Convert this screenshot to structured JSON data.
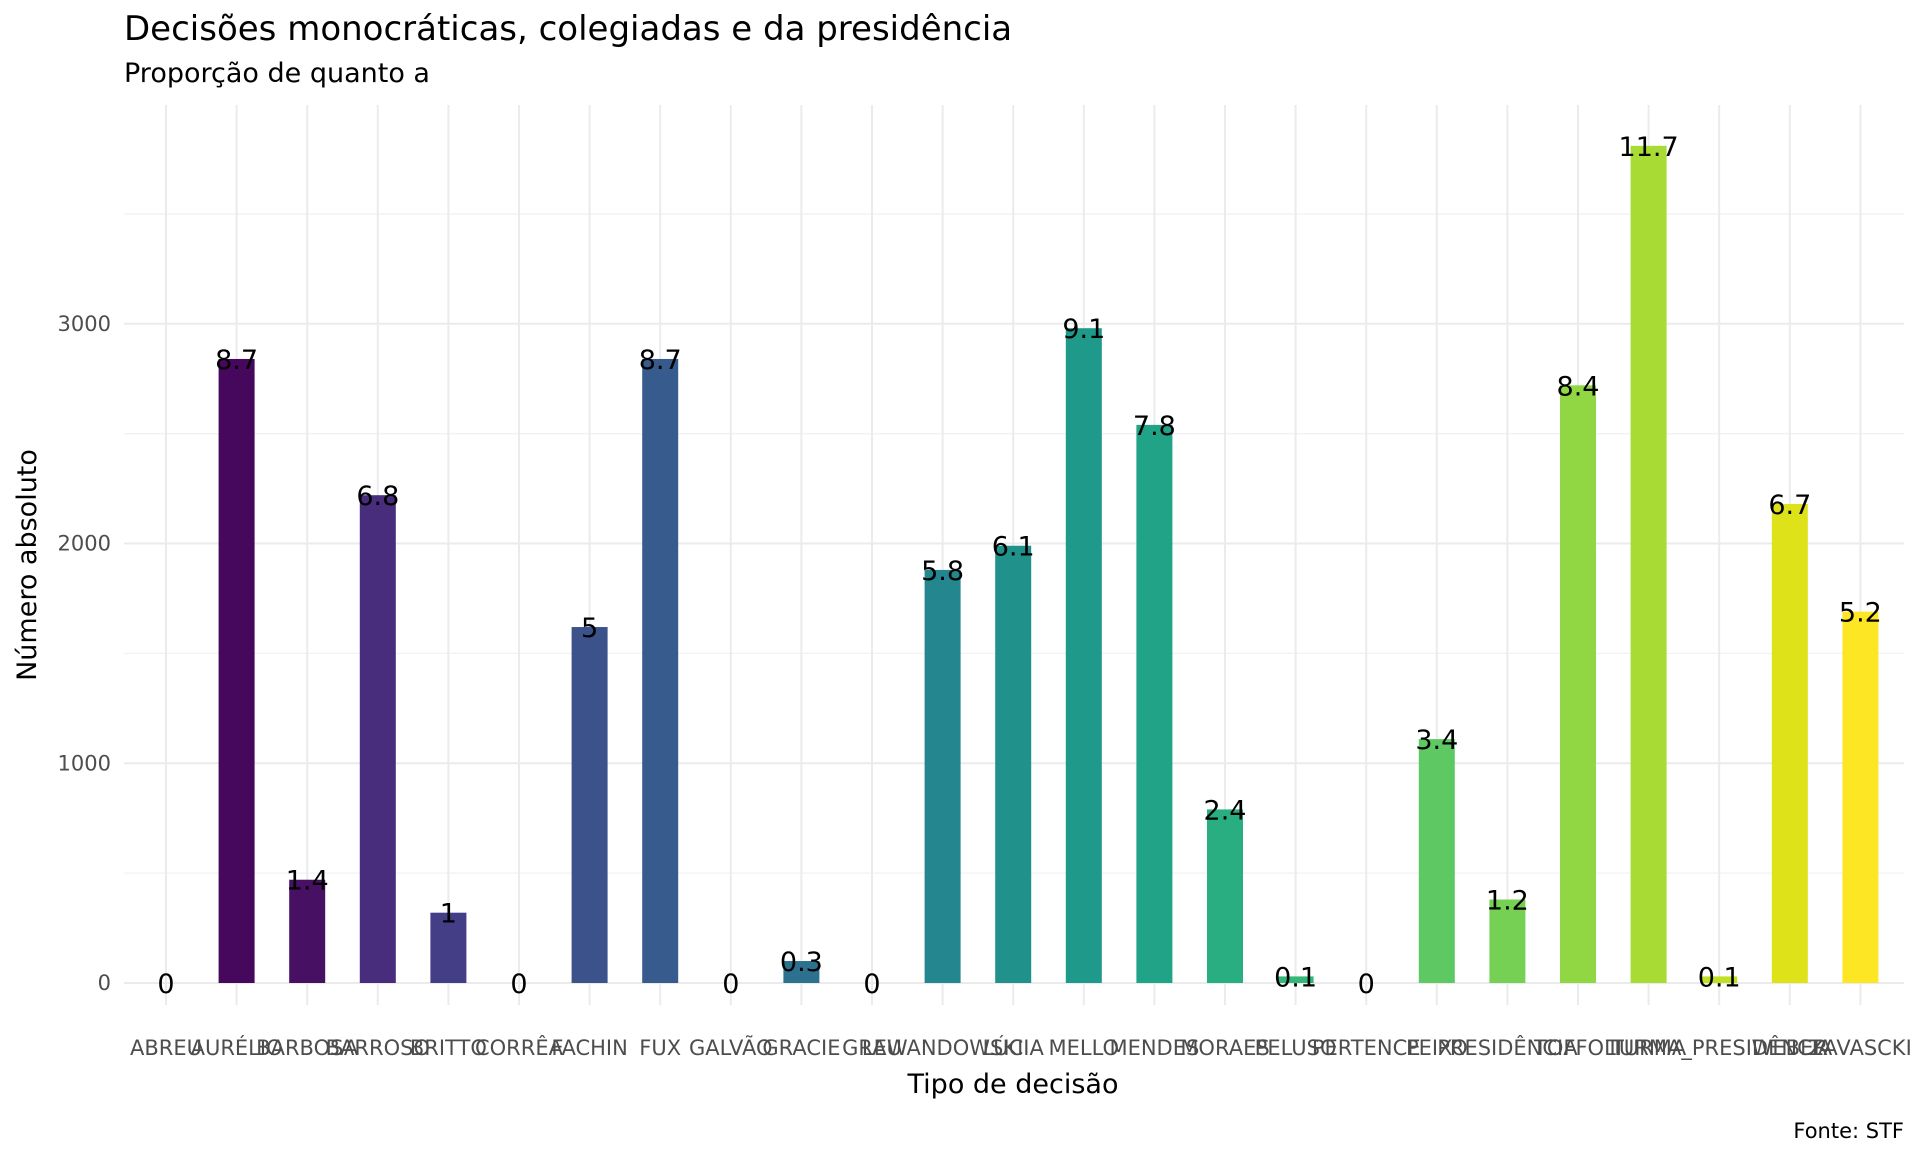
{
  "chart_data": {
    "type": "bar",
    "title": "Decisões monocráticas, colegiadas e da presidência",
    "subtitle": "Proporção de quanto a",
    "xlabel": "Tipo de decisão",
    "ylabel": "Número absoluto",
    "caption": "Fonte: STF",
    "ylim": [
      0,
      3850
    ],
    "yticks": [
      0,
      1000,
      2000,
      3000
    ],
    "grid": true,
    "legend": "none",
    "categories": [
      "ABREU",
      "AURÉLIO",
      "BARBOSA",
      "BARROSO",
      "BRITTO",
      "CORRÊA",
      "FACHIN",
      "FUX",
      "GALVÃO",
      "GRACIE",
      "GRAU",
      "LEWANDOWSKI",
      "LÚCIA",
      "MELLO",
      "MENDES",
      "MORAES",
      "PELUSO",
      "PERTENCE",
      "PEIXO",
      "PRESIDÊNCIA",
      "TOFFOLI",
      "TURMA",
      "TURMA_PRESIDÊNCIA",
      "WEBER",
      "ZAVASCKI"
    ],
    "values": [
      0,
      2840,
      470,
      2220,
      320,
      0,
      1620,
      2840,
      0,
      100,
      0,
      1880,
      1990,
      2980,
      2540,
      790,
      30,
      0,
      1110,
      380,
      2720,
      3810,
      30,
      2180,
      1690
    ],
    "labels": [
      "0",
      "8.7",
      "1.4",
      "6.8",
      "1",
      "0",
      "5",
      "8.7",
      "0",
      "0.3",
      "0",
      "5.8",
      "6.1",
      "9.1",
      "7.8",
      "2.4",
      "0.1",
      "0",
      "3.4",
      "1.2",
      "8.4",
      "11.7",
      "0.1",
      "6.7",
      "5.2"
    ],
    "colors": [
      "#440154",
      "#46085c",
      "#471063",
      "#472d7b",
      "#433e85",
      "#3e4989",
      "#3b528b",
      "#375b8d",
      "#33638d",
      "#2c728e",
      "#287c8e",
      "#24868e",
      "#21918c",
      "#1f998a",
      "#20a386",
      "#28ae80",
      "#35b779",
      "#47c16e",
      "#5ec962",
      "#75d054",
      "#90d743",
      "#a8db34",
      "#c2df23",
      "#dde318",
      "#fde725"
    ]
  }
}
